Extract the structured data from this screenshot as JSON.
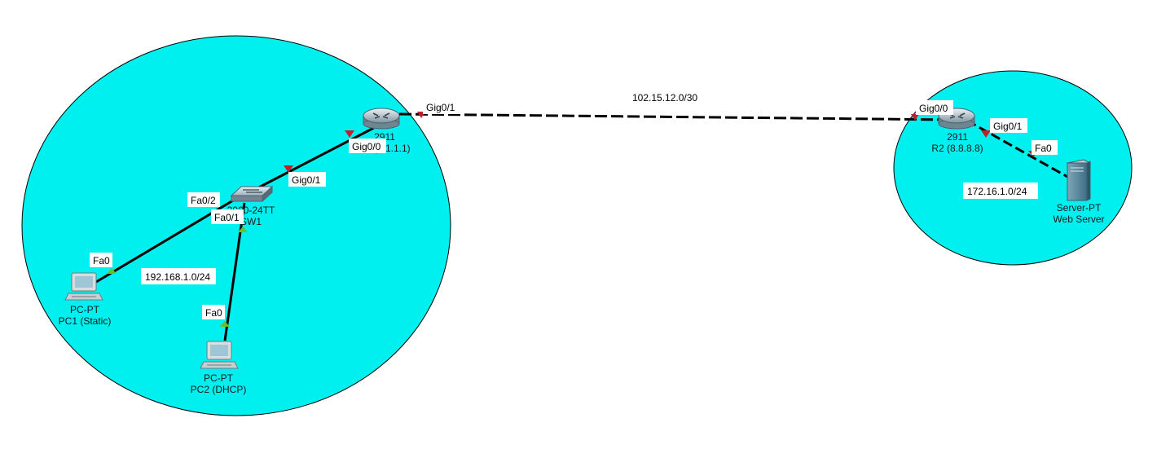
{
  "colors": {
    "area_fill": "#00f0f0",
    "area_stroke": "#000000",
    "link": "#000000",
    "port_down": "#c0202a",
    "port_up": "#6cbf2a"
  },
  "lan_area": {
    "network_label": "192.168.1.0/24",
    "r1": {
      "icon": "router-icon",
      "model": "2911",
      "name": "R1 (1.1.1.1)"
    },
    "sw1": {
      "icon": "switch-icon",
      "model": "2960-24TT",
      "name": "SW1"
    },
    "pc1": {
      "icon": "pc-icon",
      "model": "PC-PT",
      "name": "PC1 (Static)"
    },
    "pc2": {
      "icon": "pc-icon",
      "model": "PC-PT",
      "name": "PC2 (DHCP)"
    },
    "ports": {
      "r1_gig01": "Gig0/1",
      "r1_gig00": "Gig0/0",
      "sw1_gig01": "Gig0/1",
      "sw1_fa02": "Fa0/2",
      "sw1_fa01": "Fa0/1",
      "pc1_fa0": "Fa0",
      "pc2_fa0": "Fa0"
    }
  },
  "wan_link": {
    "network_label": "102.15.12.0/30"
  },
  "remote_area": {
    "network_label": "172.16.1.0/24",
    "r2": {
      "icon": "router-icon",
      "model": "2911",
      "name": "R2 (8.8.8.8)"
    },
    "server": {
      "icon": "server-icon",
      "model": "Server-PT",
      "name": "Web Server"
    },
    "ports": {
      "r2_gig00": "Gig0/0",
      "r2_gig01": "Gig0/1",
      "server_fa0": "Fa0"
    }
  }
}
